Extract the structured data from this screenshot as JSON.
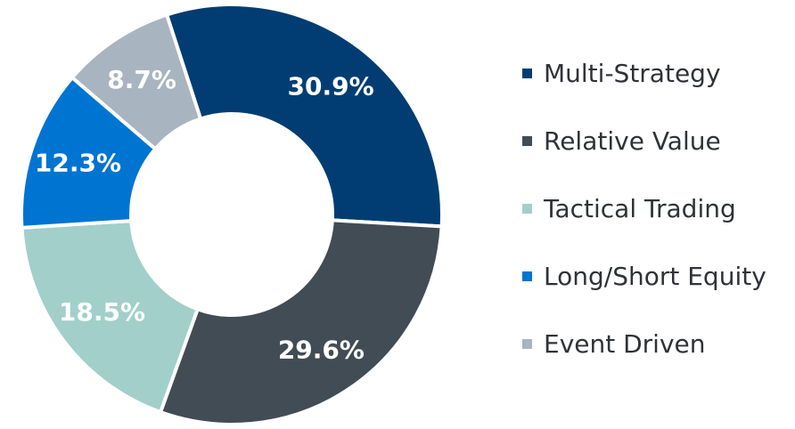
{
  "chart_data": {
    "type": "pie",
    "donut": true,
    "categories": [
      "Multi-Strategy",
      "Relative Value",
      "Tactical Trading",
      "Long/Short Equity",
      "Event Driven"
    ],
    "values": [
      30.9,
      29.6,
      18.5,
      12.3,
      8.7
    ],
    "value_labels": [
      "30.9%",
      "29.6%",
      "18.5%",
      "12.3%",
      "8.7%"
    ],
    "colors": [
      "#013d73",
      "#424c55",
      "#a2cfca",
      "#0074d1",
      "#a8b4bf"
    ],
    "legend": "right",
    "title": "",
    "xlabel": "",
    "ylabel": ""
  }
}
